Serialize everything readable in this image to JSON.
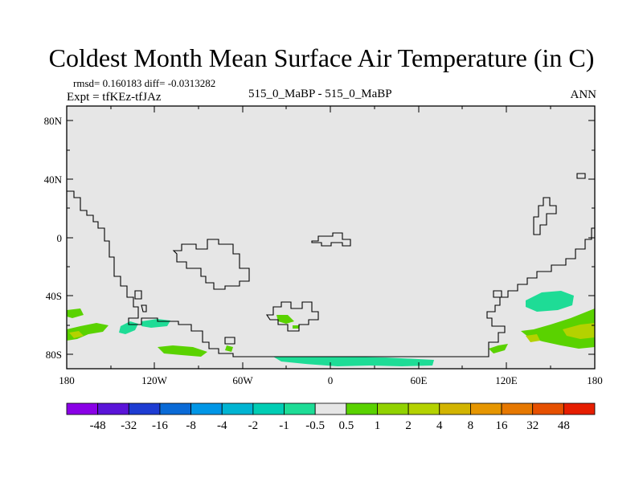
{
  "title": "Coldest Month Mean Surface Air Temperature (in C)",
  "stats_line": "rmsd= 0.160183 diff= -0.0313282",
  "expt_line": "Expt = tfKEz-tfJAz",
  "cases_line": "515_0_MaBP - 515_0_MaBP",
  "season": "ANN",
  "map": {
    "projection": "cylindrical equidistant",
    "lon_range": [
      -180,
      180
    ],
    "lat_range": [
      -90,
      90
    ],
    "background_color": "#e6e6e6",
    "coastline_color": "#000000",
    "x_tick_labels": [
      "180",
      "120W",
      "60W",
      "0",
      "60E",
      "120E",
      "180"
    ],
    "y_tick_labels": [
      "80N",
      "40N",
      "0",
      "40S",
      "80S"
    ]
  },
  "colorbar": {
    "labels": [
      "-48",
      "-32",
      "-16",
      "-8",
      "-4",
      "-2",
      "-1",
      "-0.5",
      "0.5",
      "1",
      "2",
      "4",
      "8",
      "16",
      "32",
      "48"
    ],
    "colors": [
      "#8a00e6",
      "#5a14d8",
      "#1e3cd2",
      "#0a6ad6",
      "#0096e6",
      "#00b4d2",
      "#00cdb4",
      "#1edc96",
      "#e6e6e6",
      "#5ad200",
      "#91d200",
      "#b4d200",
      "#d2b400",
      "#e69600",
      "#e67800",
      "#e65000",
      "#e61e00"
    ]
  }
}
